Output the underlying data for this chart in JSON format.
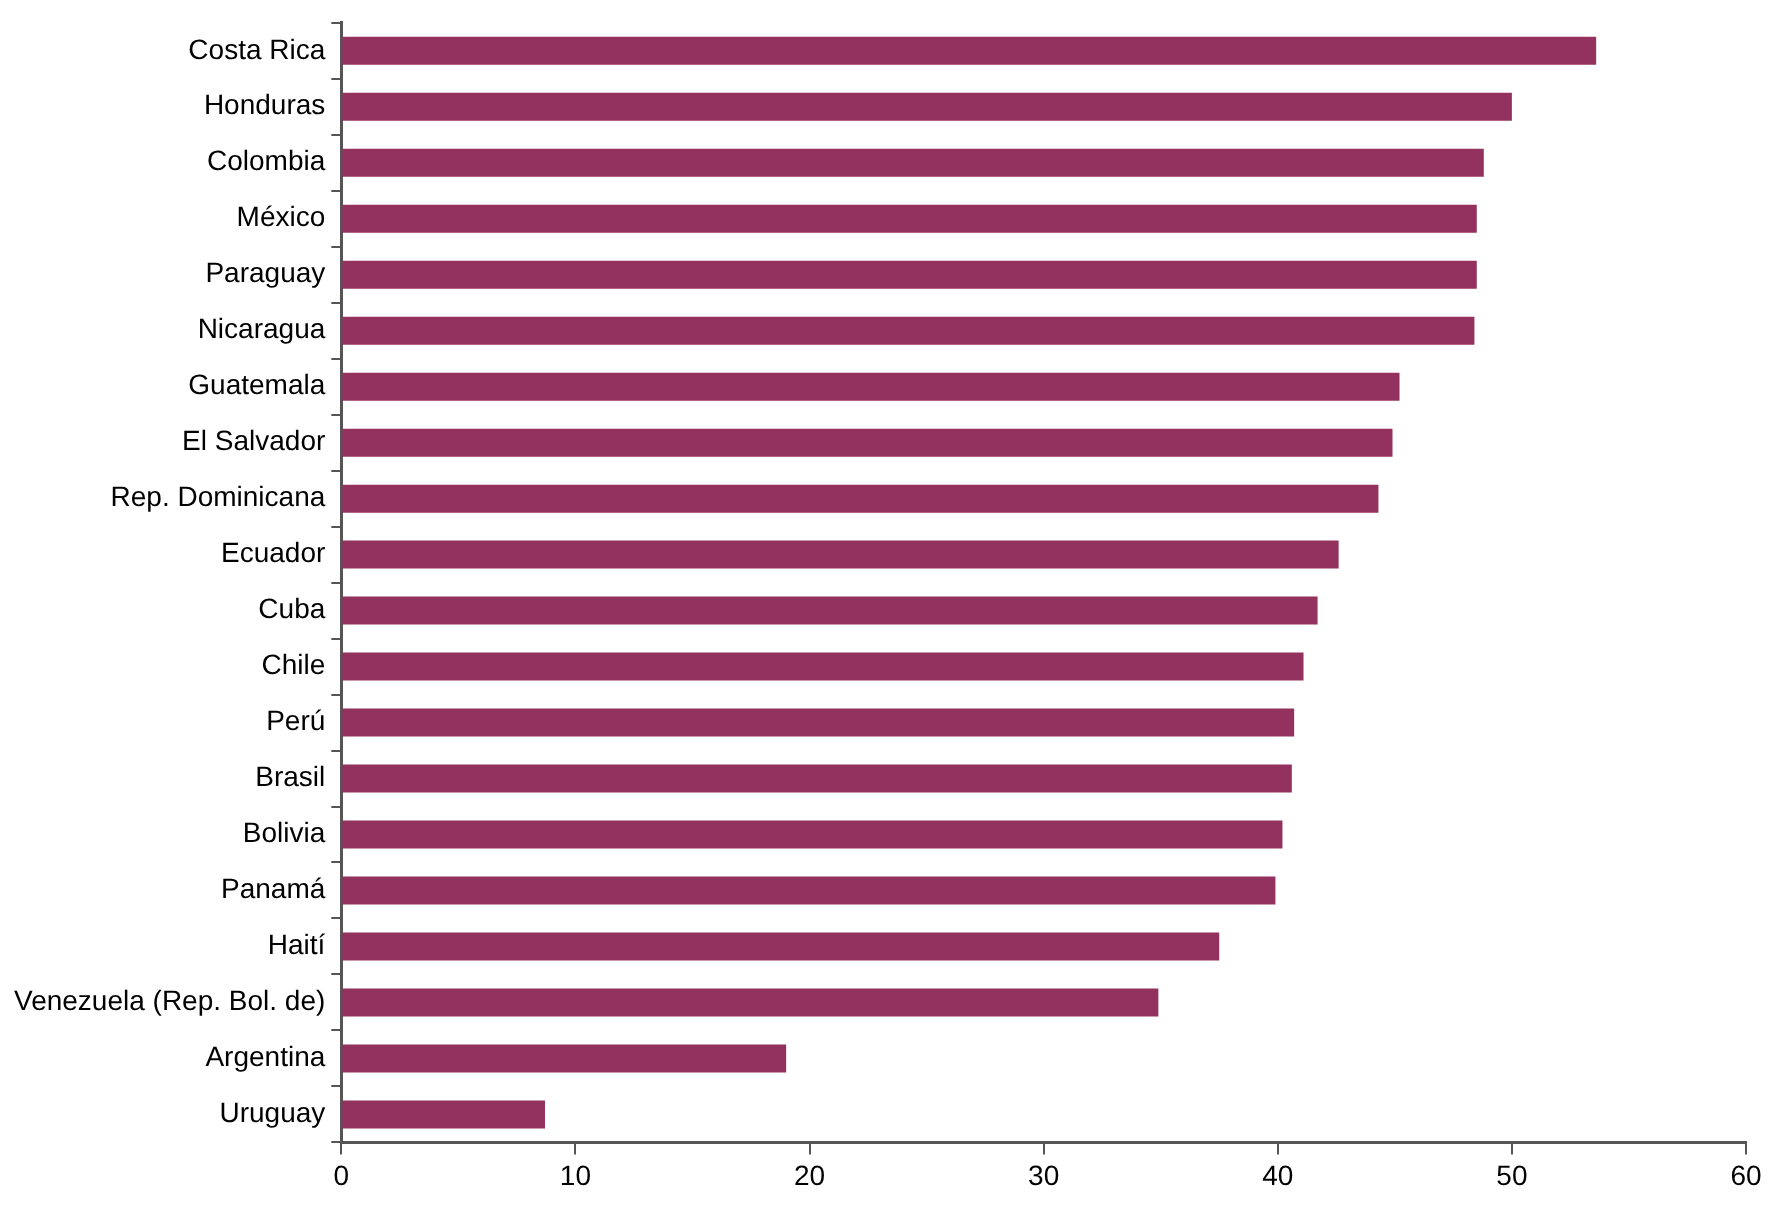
{
  "chart_data": {
    "type": "bar",
    "orientation": "horizontal",
    "categories": [
      "Costa Rica",
      "Honduras",
      "Colombia",
      "México",
      "Paraguay",
      "Nicaragua",
      "Guatemala",
      "El Salvador",
      "Rep. Dominicana",
      "Ecuador",
      "Cuba",
      "Chile",
      "Perú",
      "Brasil",
      "Bolivia",
      "Panamá",
      "Haití",
      "Venezuela (Rep. Bol. de)",
      "Argentina",
      "Uruguay"
    ],
    "values": [
      53.6,
      50.0,
      48.8,
      48.5,
      48.5,
      48.4,
      45.2,
      44.9,
      44.3,
      42.6,
      41.7,
      41.1,
      40.7,
      40.6,
      40.2,
      39.9,
      37.5,
      34.9,
      19.0,
      8.7
    ],
    "color": "#93325e",
    "xlim": [
      0,
      60
    ],
    "xticks": [
      0,
      10,
      20,
      30,
      40,
      50,
      60
    ],
    "grid": false,
    "legend": false
  }
}
